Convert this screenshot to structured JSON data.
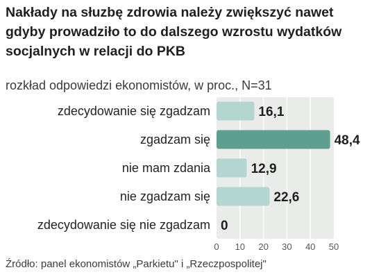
{
  "title": "Nakłady na słuzbę zdrowia należy zwiększyć nawet\ngdyby prowadziło to do dalszego wzrostu wydatków\nsocjalnych w relacji do PKB",
  "subtitle": "rozkład odpowiedzi ekonomistów, w proc., N=31",
  "source": "Źródło: panel ekonomistów „Parkietu\" i „Rzeczpospolitej\"",
  "colors": {
    "bar": "#b3d6d0",
    "bar_highlight": "#5e9f8f",
    "plot_background": "#eaecea",
    "gridline": "#ffffff"
  },
  "chart_data": {
    "type": "bar",
    "orientation": "horizontal",
    "categories": [
      "zdecydowanie się zgadzam",
      "zgadzam się",
      "nie mam zdania",
      "nie zgadzam się",
      "zdecydowanie się nie zgadzam"
    ],
    "values": [
      16.1,
      48.4,
      12.9,
      22.6,
      0
    ],
    "value_labels": [
      "16,1",
      "48,4",
      "12,9",
      "22,6",
      "0"
    ],
    "highlight_index": 1,
    "xlim": [
      0,
      50
    ],
    "xticks": [
      0,
      10,
      20,
      30,
      40,
      50
    ],
    "grid": true
  }
}
